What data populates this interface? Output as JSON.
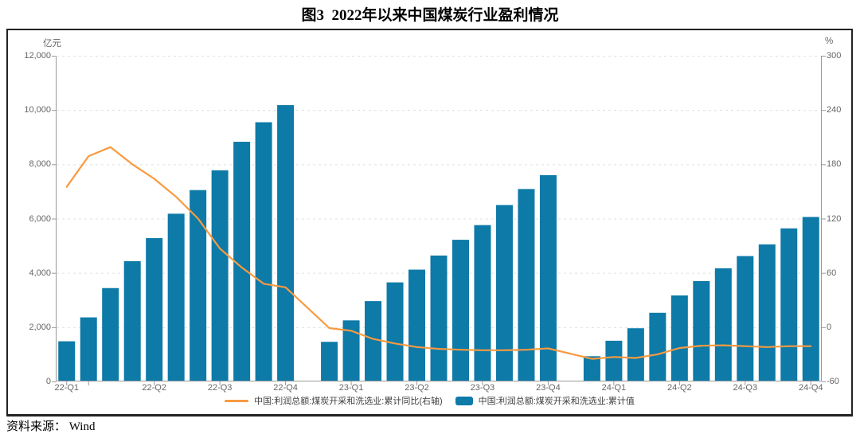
{
  "title": "图3  2022年以来中国煤炭行业盈利情况",
  "source_note": "资料来源： Wind",
  "colors": {
    "bar": "#0d7aa8",
    "line": "#f89a40",
    "grid": "#e0e0e0",
    "axis": "#999999",
    "tick_text": "#666666",
    "border": "#222222"
  },
  "legend": [
    {
      "label": "中国:利润总额:煤炭开采和洗选业:累计同比(右轴)",
      "type": "line",
      "color": "#f89a40"
    },
    {
      "label": "中国:利润总额:煤炭开采和洗选业:累计值",
      "type": "bar",
      "color": "#0d7aa8"
    }
  ],
  "chart_data": {
    "type": "bar+line",
    "unit_left": "亿元",
    "unit_right": "%",
    "ylim_left": [
      0,
      12000
    ],
    "ylim_right": [
      -60,
      300
    ],
    "grid": "horizontal-dashed",
    "x_months": [
      "2022-02",
      "2022-03",
      "2022-04",
      "2022-05",
      "2022-06",
      "2022-07",
      "2022-08",
      "2022-09",
      "2022-10",
      "2022-11",
      "2022-12",
      "2023-02",
      "2023-03",
      "2023-04",
      "2023-05",
      "2023-06",
      "2023-07",
      "2023-08",
      "2023-09",
      "2023-10",
      "2023-11",
      "2023-12",
      "2024-02",
      "2024-03",
      "2024-04",
      "2024-05",
      "2024-06",
      "2024-07",
      "2024-08",
      "2024-09",
      "2024-10",
      "2024-11",
      "2024-12"
    ],
    "series": [
      {
        "name": "中国:利润总额:煤炭开采和洗选业:累计值",
        "type": "bar",
        "axis": "left",
        "color": "#0d7aa8",
        "values": [
          1480,
          2360,
          3440,
          4430,
          5280,
          6180,
          7050,
          7780,
          8830,
          9550,
          10180,
          1460,
          2250,
          2960,
          3650,
          4120,
          4640,
          5220,
          5760,
          6500,
          7090,
          7600,
          930,
          1500,
          1960,
          2530,
          3170,
          3700,
          4170,
          4620,
          5050,
          5640,
          6060
        ]
      },
      {
        "name": "中国:利润总额:煤炭开采和洗选业:累计同比(右轴)",
        "type": "line",
        "axis": "right",
        "color": "#f89a40",
        "values": [
          155,
          189,
          199,
          180,
          164,
          144,
          120,
          87,
          66,
          48,
          44,
          -1,
          -4,
          -13,
          -18,
          -22,
          -24,
          -25,
          -25.5,
          -25.5,
          -25,
          -23.5,
          -35,
          -33,
          -34,
          -30,
          -23,
          -20.5,
          -20,
          -21,
          -22,
          -21,
          -21
        ]
      }
    ],
    "left_ticks": [
      {
        "label": "12,000",
        "value": 12000
      },
      {
        "label": "10,000",
        "value": 10000
      },
      {
        "label": "8,000",
        "value": 8000
      },
      {
        "label": "6,000",
        "value": 6000
      },
      {
        "label": "4,000",
        "value": 4000
      },
      {
        "label": "2,000",
        "value": 2000
      },
      {
        "label": "0",
        "value": 0
      }
    ],
    "right_ticks": [
      {
        "label": "300",
        "value": 300
      },
      {
        "label": "240",
        "value": 240
      },
      {
        "label": "180",
        "value": 180
      },
      {
        "label": "120",
        "value": 120
      },
      {
        "label": "60",
        "value": 60
      },
      {
        "label": "0",
        "value": 0
      },
      {
        "label": "-60",
        "value": -60
      }
    ],
    "x_tick_labels": [
      {
        "label": "22-Q1",
        "month": "2022-02"
      },
      {
        "label": "22-Q2",
        "month": "2022-06"
      },
      {
        "label": "22-Q3",
        "month": "2022-09"
      },
      {
        "label": "22-Q4",
        "month": "2022-12"
      },
      {
        "label": "23-Q1",
        "month": "2023-03"
      },
      {
        "label": "23-Q2",
        "month": "2023-06"
      },
      {
        "label": "23-Q3",
        "month": "2023-09"
      },
      {
        "label": "23-Q4",
        "month": "2023-12"
      },
      {
        "label": "24-Q1",
        "month": "2024-03"
      },
      {
        "label": "24-Q2",
        "month": "2024-06"
      },
      {
        "label": "24-Q3",
        "month": "2024-09"
      },
      {
        "label": "24-Q4",
        "month": "2024-12"
      }
    ],
    "extra_axis_tick_months": [
      "2022-03"
    ]
  }
}
